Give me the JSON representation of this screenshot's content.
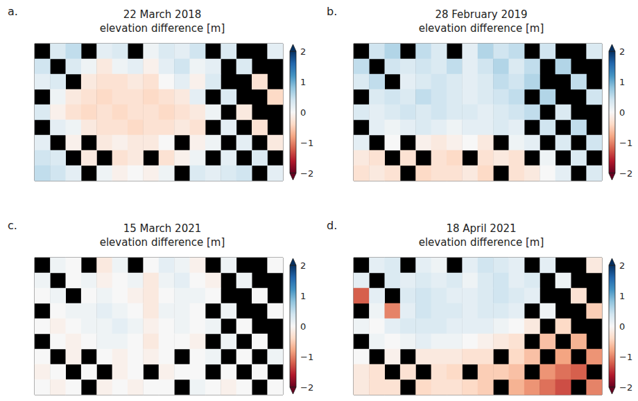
{
  "chart_data": [
    {
      "type": "heatmap",
      "panel": "a.",
      "title": "22 March 2018",
      "subtitle": "elevation difference [m]",
      "color": "RdBu",
      "tick_labels": false,
      "colorbar": {
        "range": [
          -2,
          2
        ],
        "ticks": [
          {
            "value": -2,
            "label": "−2"
          },
          {
            "value": -1,
            "label": "−1"
          },
          0,
          1,
          2
        ]
      },
      "cells": [
        [
          null,
          0.3,
          0.5,
          null,
          0.2,
          0.3,
          null,
          0.1,
          0.3,
          0.2,
          0.4,
          null,
          0.3,
          null,
          null,
          0.2
        ],
        [
          0.4,
          null,
          0.3,
          0.1,
          -0.2,
          0.1,
          0.2,
          -0.1,
          0.2,
          0.4,
          0.1,
          0.2,
          null,
          0.3,
          null,
          null
        ],
        [
          0.2,
          0.3,
          null,
          -0.2,
          -0.3,
          -0.3,
          -0.2,
          -0.3,
          0.0,
          0.2,
          -0.1,
          0.3,
          null,
          null,
          -0.3,
          null
        ],
        [
          null,
          0.1,
          -0.2,
          -0.3,
          -0.4,
          -0.3,
          -0.3,
          -0.4,
          -0.3,
          -0.2,
          0.2,
          null,
          0.3,
          null,
          null,
          -0.4
        ],
        [
          0.3,
          -0.1,
          -0.3,
          -0.4,
          -0.3,
          -0.4,
          -0.3,
          -0.3,
          -0.4,
          -0.3,
          -0.2,
          0.1,
          null,
          -0.2,
          null,
          null
        ],
        [
          null,
          0.2,
          0.1,
          -0.2,
          -0.3,
          -0.3,
          -0.4,
          -0.3,
          -0.3,
          -0.2,
          -0.3,
          null,
          0.2,
          null,
          -0.3,
          null
        ],
        [
          0.2,
          null,
          -0.1,
          null,
          -0.2,
          -0.1,
          -0.2,
          -0.2,
          0.0,
          null,
          -0.1,
          0.1,
          null,
          0.2,
          null,
          -0.2
        ],
        [
          0.4,
          0.3,
          null,
          -0.2,
          null,
          -0.3,
          -0.2,
          null,
          -0.3,
          -0.1,
          0.1,
          null,
          0.2,
          null,
          0.3,
          null
        ],
        [
          0.5,
          0.4,
          0.2,
          null,
          0.1,
          -0.1,
          0.0,
          -0.1,
          0.1,
          null,
          0.3,
          0.2,
          0.3,
          0.4,
          null,
          0.2
        ]
      ]
    },
    {
      "type": "heatmap",
      "panel": "b.",
      "title": "28 February 2019",
      "subtitle": "elevation difference [m]",
      "color": "RdBu",
      "tick_labels": false,
      "colorbar": {
        "range": [
          -2,
          2
        ],
        "ticks": [
          {
            "value": -2,
            "label": "−2"
          },
          {
            "value": -1,
            "label": "−1"
          },
          0,
          1,
          2
        ]
      },
      "cells": [
        [
          null,
          0.4,
          0.6,
          null,
          0.5,
          0.3,
          null,
          0.2,
          0.6,
          0.4,
          0.5,
          null,
          0.4,
          null,
          null,
          0.3
        ],
        [
          0.5,
          null,
          0.4,
          0.3,
          0.4,
          0.3,
          0.5,
          0.2,
          0.4,
          0.6,
          0.3,
          0.5,
          null,
          0.6,
          null,
          null
        ],
        [
          0.3,
          0.5,
          null,
          0.2,
          0.3,
          0.4,
          0.3,
          0.2,
          0.3,
          0.5,
          0.4,
          0.6,
          null,
          null,
          0.5,
          null
        ],
        [
          null,
          0.3,
          0.4,
          0.3,
          0.5,
          0.4,
          0.3,
          0.2,
          0.3,
          0.4,
          0.5,
          null,
          0.6,
          null,
          null,
          0.4
        ],
        [
          0.3,
          0.2,
          0.3,
          0.4,
          0.3,
          0.4,
          0.3,
          0.3,
          0.2,
          0.3,
          0.4,
          0.5,
          null,
          0.3,
          null,
          null
        ],
        [
          null,
          0.2,
          0.1,
          0.2,
          0.3,
          0.2,
          0.1,
          0.2,
          0.2,
          0.3,
          0.2,
          null,
          0.4,
          null,
          0.5,
          null
        ],
        [
          0.2,
          null,
          0.0,
          null,
          -0.1,
          -0.2,
          -0.1,
          0.0,
          -0.2,
          null,
          0.1,
          0.2,
          null,
          0.3,
          null,
          0.4
        ],
        [
          -0.2,
          -0.3,
          null,
          -0.3,
          null,
          -0.3,
          -0.4,
          null,
          -0.3,
          -0.2,
          -0.3,
          null,
          0.1,
          null,
          0.3,
          null
        ],
        [
          -0.3,
          -0.2,
          -0.3,
          null,
          -0.4,
          -0.3,
          -0.3,
          -0.2,
          -0.4,
          null,
          -0.3,
          -0.2,
          0.0,
          0.2,
          null,
          0.3
        ]
      ]
    },
    {
      "type": "heatmap",
      "panel": "c.",
      "title": "15 March 2021",
      "subtitle": "elevation difference [m]",
      "color": "RdBu",
      "tick_labels": false,
      "colorbar": {
        "range": [
          -2,
          2
        ],
        "ticks": [
          {
            "value": -2,
            "label": "−2"
          },
          {
            "value": -1,
            "label": "−1"
          },
          0,
          1,
          2
        ]
      },
      "cells": [
        [
          null,
          0.1,
          0.0,
          null,
          -0.2,
          0.1,
          null,
          0.0,
          0.2,
          0.1,
          -0.1,
          null,
          0.1,
          null,
          null,
          0.0
        ],
        [
          0.1,
          null,
          0.0,
          0.1,
          -0.1,
          0.0,
          0.1,
          -0.2,
          0.1,
          0.2,
          0.0,
          -0.1,
          null,
          0.1,
          null,
          null
        ],
        [
          0.0,
          0.1,
          null,
          0.0,
          0.1,
          0.0,
          -0.1,
          -0.2,
          0.0,
          0.1,
          0.1,
          0.0,
          null,
          null,
          0.0,
          null
        ],
        [
          null,
          0.0,
          0.1,
          0.1,
          0.2,
          0.1,
          0.0,
          -0.2,
          0.1,
          0.1,
          0.0,
          null,
          0.1,
          null,
          null,
          0.0
        ],
        [
          0.0,
          -0.1,
          0.0,
          0.1,
          0.1,
          0.2,
          0.1,
          -0.1,
          0.0,
          0.1,
          0.0,
          0.1,
          null,
          0.0,
          null,
          null
        ],
        [
          null,
          0.0,
          -0.1,
          0.0,
          0.1,
          0.1,
          0.0,
          -0.2,
          0.0,
          0.0,
          -0.1,
          null,
          0.1,
          null,
          0.0,
          null
        ],
        [
          0.0,
          null,
          -0.1,
          null,
          0.0,
          -0.1,
          0.0,
          -0.1,
          0.0,
          null,
          0.0,
          0.1,
          null,
          0.0,
          null,
          0.1
        ],
        [
          -0.1,
          0.0,
          null,
          0.0,
          null,
          -0.1,
          0.0,
          null,
          -0.1,
          0.0,
          0.0,
          null,
          0.0,
          null,
          0.0,
          null
        ],
        [
          0.0,
          -0.1,
          0.0,
          null,
          -0.1,
          0.0,
          -0.1,
          0.0,
          0.0,
          null,
          0.1,
          0.0,
          -0.1,
          0.0,
          null,
          0.0
        ]
      ]
    },
    {
      "type": "heatmap",
      "panel": "d.",
      "title": "18 April 2021",
      "subtitle": "elevation difference [m]",
      "color": "RdBu",
      "tick_labels": false,
      "colorbar": {
        "range": [
          -2,
          2
        ],
        "ticks": [
          {
            "value": -2,
            "label": "−2"
          },
          {
            "value": -1,
            "label": "−1"
          },
          0,
          1,
          2
        ]
      },
      "cells": [
        [
          null,
          0.2,
          0.3,
          null,
          0.2,
          0.1,
          null,
          0.2,
          0.4,
          0.3,
          0.2,
          null,
          0.2,
          null,
          null,
          -0.2
        ],
        [
          0.2,
          null,
          0.3,
          0.2,
          0.3,
          0.2,
          0.3,
          0.1,
          0.3,
          0.4,
          0.2,
          0.3,
          null,
          0.1,
          null,
          null
        ],
        [
          -1.2,
          0.2,
          null,
          0.3,
          0.4,
          0.3,
          0.2,
          0.2,
          0.3,
          0.4,
          0.3,
          0.2,
          null,
          null,
          -0.3,
          null
        ],
        [
          null,
          0.1,
          -1.0,
          0.2,
          0.4,
          0.3,
          0.3,
          0.2,
          0.3,
          0.3,
          0.2,
          null,
          0.1,
          null,
          null,
          -0.5
        ],
        [
          0.1,
          0.0,
          0.2,
          0.3,
          0.3,
          0.3,
          0.2,
          0.2,
          0.2,
          0.1,
          0.0,
          -0.2,
          null,
          -0.4,
          null,
          null
        ],
        [
          null,
          0.1,
          0.0,
          0.1,
          0.2,
          0.1,
          0.1,
          0.0,
          -0.1,
          -0.2,
          -0.3,
          null,
          -0.6,
          null,
          -0.7,
          null
        ],
        [
          0.0,
          null,
          -0.1,
          null,
          -0.2,
          -0.2,
          -0.2,
          -0.3,
          -0.3,
          null,
          -0.4,
          -0.6,
          null,
          -0.8,
          null,
          -0.9
        ],
        [
          -0.2,
          -0.3,
          null,
          -0.3,
          null,
          -0.3,
          -0.4,
          null,
          -0.5,
          -0.5,
          -0.6,
          null,
          -0.9,
          -1.1,
          -1.2,
          null
        ],
        [
          -0.2,
          -0.3,
          -0.3,
          null,
          -0.4,
          -0.3,
          -0.3,
          -0.4,
          -0.5,
          null,
          -0.7,
          -0.9,
          -1.1,
          -1.3,
          null,
          -1.0
        ]
      ]
    }
  ]
}
